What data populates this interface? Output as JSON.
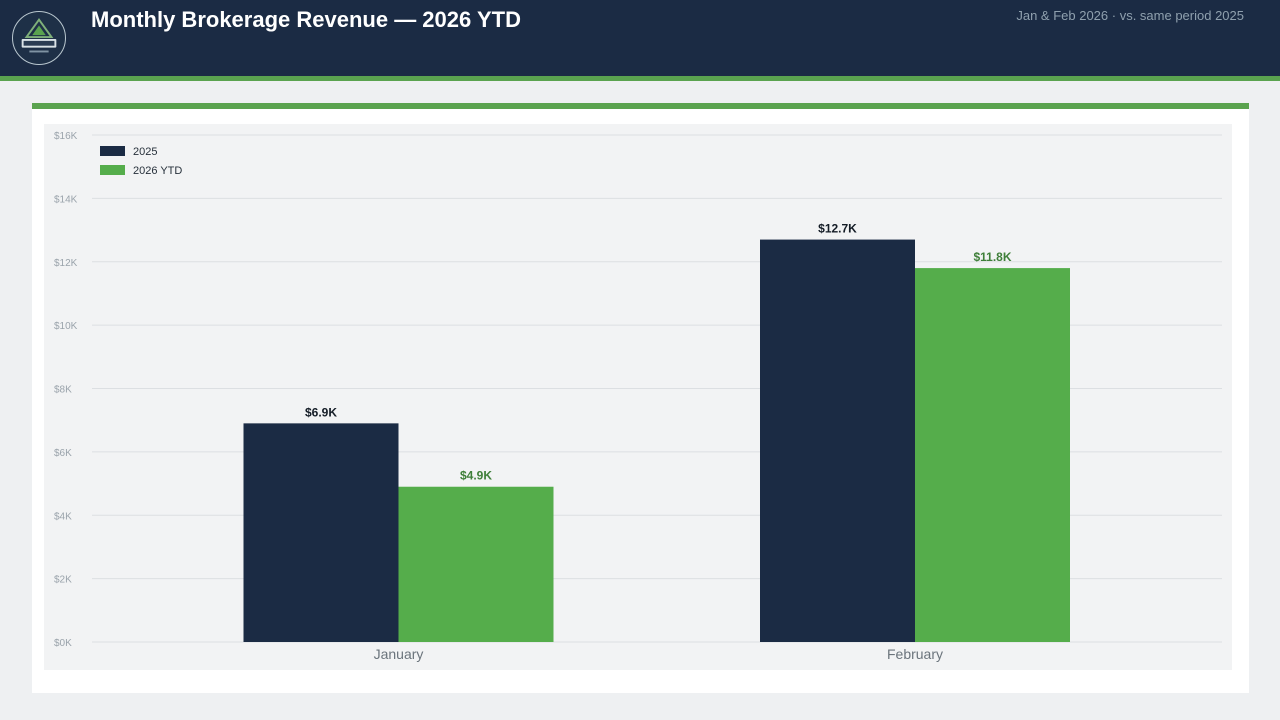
{
  "header": {
    "title": "Monthly Brokerage Revenue — 2026 YTD",
    "subtitle": "Jan & Feb 2026 · vs. same period 2025"
  },
  "logo": {
    "text": "",
    "icon": "mountain-logo-icon"
  },
  "colors": {
    "navy": "#1b2b44",
    "green": "#5aa34f",
    "series_2025": "#1b2b44",
    "series_2026": "#55ad4b"
  },
  "chart_data": {
    "type": "bar",
    "title": "Monthly Brokerage Revenue — 2026 YTD",
    "xlabel": "",
    "ylabel": "",
    "ylim": [
      0,
      16000
    ],
    "yticks": [
      0,
      2000,
      4000,
      6000,
      8000,
      10000,
      12000,
      14000,
      16000
    ],
    "ytick_labels": [
      "$0K",
      "$2K",
      "$4K",
      "$6K",
      "$8K",
      "$10K",
      "$12K",
      "$14K",
      "$16K"
    ],
    "categories": [
      "January",
      "February"
    ],
    "series": [
      {
        "name": "2025",
        "values": [
          6900,
          12700
        ],
        "labels": [
          "$6.9K",
          "$12.7K"
        ]
      },
      {
        "name": "2026 YTD",
        "values": [
          4900,
          11800
        ],
        "labels": [
          "$4.9K",
          "$11.8K"
        ]
      }
    ],
    "legend": "top-left",
    "grid": true
  }
}
